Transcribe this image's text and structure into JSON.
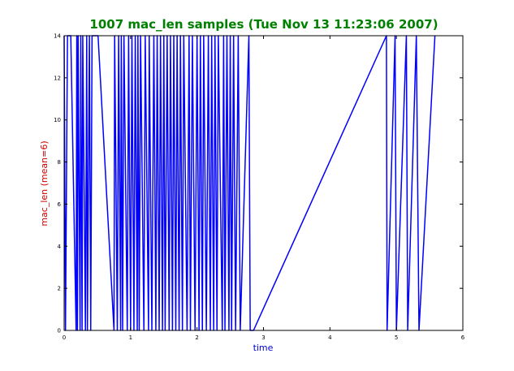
{
  "chart_data": {
    "type": "line",
    "title": "1007 mac_len samples (Tue Nov 13 11:23:06 2007)",
    "xlabel": "time",
    "ylabel": "mac_len (mean=6)",
    "xlim": [
      0,
      6
    ],
    "ylim": [
      0,
      14
    ],
    "x_ticks": [
      "0",
      "1",
      "2",
      "3",
      "4",
      "5",
      "6"
    ],
    "y_ticks": [
      "0",
      "2",
      "4",
      "6",
      "8",
      "10",
      "12",
      "14"
    ],
    "grid": false,
    "legend": "none",
    "colors": {
      "title": "#008000",
      "axis_label": "#cc0000",
      "xlabel": "#0000cc",
      "line": "#0000ff"
    },
    "series": [
      {
        "x": [
          0.0,
          0.02,
          0.05,
          0.1,
          0.18,
          0.19,
          0.2,
          0.21,
          0.24,
          0.25,
          0.27,
          0.28,
          0.32,
          0.34,
          0.35,
          0.38,
          0.4,
          0.42,
          0.5,
          0.51,
          0.75,
          0.76,
          0.8,
          0.82,
          0.85,
          0.86,
          0.88,
          0.9,
          0.95,
          0.97,
          1.0,
          1.02,
          1.05,
          1.07,
          1.1,
          1.11,
          1.13,
          1.15,
          1.2,
          1.22,
          1.27,
          1.28,
          1.32,
          1.35,
          1.38,
          1.4,
          1.43,
          1.45,
          1.48,
          1.5,
          1.52,
          1.55,
          1.58,
          1.6,
          1.63,
          1.65,
          1.68,
          1.7,
          1.73,
          1.75,
          1.78,
          1.8,
          1.85,
          1.88,
          1.9,
          1.93,
          1.97,
          2.0,
          2.03,
          2.05,
          2.08,
          2.1,
          2.14,
          2.17,
          2.2,
          2.22,
          2.25,
          2.27,
          2.3,
          2.32,
          2.38,
          2.4,
          2.42,
          2.45,
          2.48,
          2.5,
          2.52,
          2.55,
          2.58,
          2.62,
          2.65,
          2.78,
          2.8,
          2.85,
          4.85,
          4.86,
          4.98,
          5.0,
          5.15,
          5.17,
          5.3,
          5.34,
          5.58
        ],
        "y": [
          14,
          0,
          14,
          14,
          0,
          14,
          0,
          14,
          0,
          14,
          0,
          14,
          0,
          14,
          0,
          14,
          0,
          14,
          14,
          14,
          0,
          14,
          0,
          14,
          0,
          14,
          0,
          14,
          0,
          14,
          0,
          14,
          0,
          14,
          0,
          14,
          0,
          14,
          0,
          14,
          0,
          14,
          0,
          14,
          0,
          14,
          0,
          14,
          0,
          14,
          0,
          14,
          0,
          14,
          0,
          14,
          0,
          14,
          0,
          14,
          0,
          14,
          0,
          14,
          0,
          14,
          0,
          14,
          0,
          14,
          0,
          14,
          0,
          14,
          0,
          14,
          0,
          14,
          0,
          14,
          0,
          14,
          0,
          14,
          0,
          14,
          0,
          14,
          0,
          14,
          0,
          14,
          0,
          0,
          14,
          0,
          14,
          0,
          14,
          0,
          14,
          0,
          14
        ]
      }
    ]
  }
}
